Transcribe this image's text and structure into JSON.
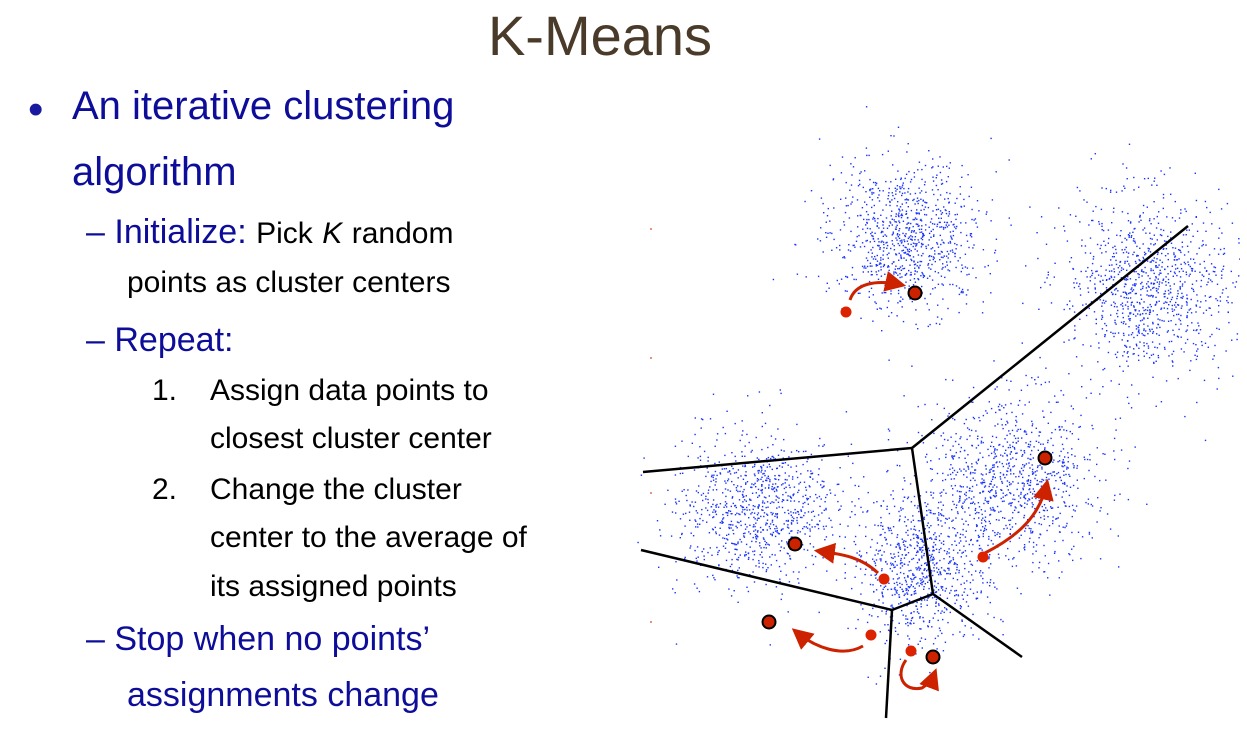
{
  "title": "K-Means",
  "bullet": {
    "line1": "An iterative clustering",
    "line2": "algorithm"
  },
  "steps": {
    "initialize": {
      "label": "Initialize:",
      "text_before_k": "Pick",
      "k": "K",
      "text_after_k": "random",
      "line2": "points as cluster centers"
    },
    "repeat": {
      "label": "Repeat:",
      "items": [
        {
          "num": "1.",
          "line1": "Assign data points to",
          "line2": "closest cluster center"
        },
        {
          "num": "2.",
          "line1": "Change the cluster",
          "line2": "center to the average  of",
          "line3": "its assigned points"
        }
      ]
    },
    "stop": {
      "line1": "Stop when no points’",
      "line2": "assignments change"
    }
  },
  "colors": {
    "title": "#4a3a2a",
    "bullet_text": "#0d0d99",
    "body_text": "#000000",
    "points": "#1a33ff",
    "centers": "#cc2200",
    "arrows": "#cc2200",
    "boundaries": "#000000"
  },
  "icons": {
    "bullet": "bullet-dot-icon",
    "dash": "en-dash-icon"
  }
}
